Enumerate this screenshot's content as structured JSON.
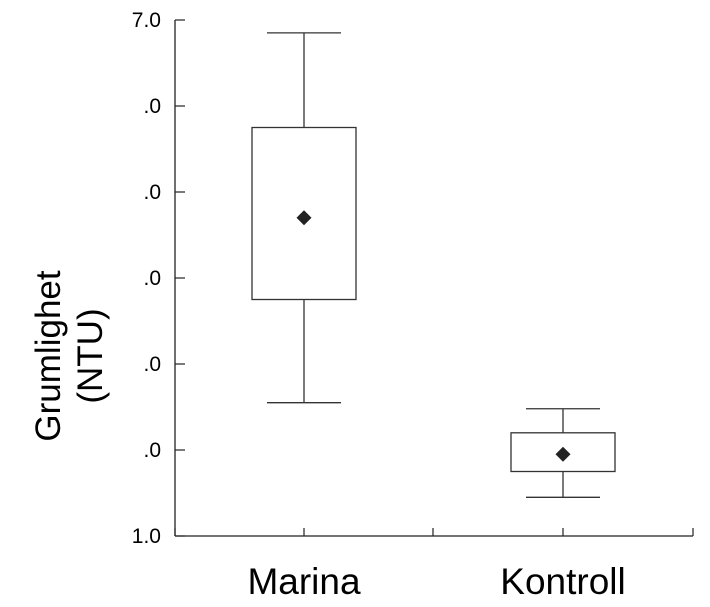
{
  "chart_data": {
    "type": "box",
    "title": "",
    "ylabel": [
      "Grumlighet",
      "(NTU)"
    ],
    "xlabel": "",
    "categories": [
      "Marina",
      "Kontroll"
    ],
    "ylim": [
      1.0,
      7.0
    ],
    "ytick_labels": [
      "1.0",
      ".0",
      ".0",
      ".0",
      ".0",
      ".0",
      "7.0"
    ],
    "ytick_values": [
      1.0,
      2.0,
      3.0,
      4.0,
      5.0,
      6.0,
      7.0
    ],
    "grid": false,
    "series": [
      {
        "boxes": [
          {
            "whisker_low": 2.55,
            "q1": 3.75,
            "mean": 4.7,
            "q3": 5.75,
            "whisker_high": 6.85
          },
          {
            "whisker_low": 1.45,
            "q1": 1.75,
            "mean": 1.95,
            "q3": 2.2,
            "whisker_high": 2.48
          }
        ]
      }
    ],
    "colors": {
      "axis": "#222222",
      "box_stroke": "#333333",
      "marker": "#222222",
      "text": "#000000"
    }
  }
}
